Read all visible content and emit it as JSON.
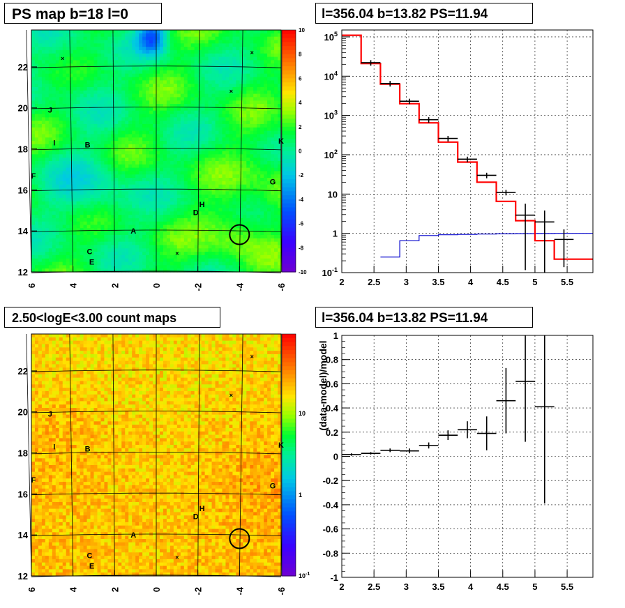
{
  "panels": {
    "top_left_title": "PS map b=18 l=0",
    "top_right_title": "l=356.04 b=13.82 PS=11.94",
    "bottom_left_title": "2.50<logE<3.00 count maps",
    "bottom_right_title": "l=356.04 b=13.82 PS=11.94"
  },
  "colors": {
    "data": "#000000",
    "model": "#ff0000",
    "background_model": "#0000cc"
  },
  "chart_data": [
    {
      "type": "heatmap",
      "title": "PS map b=18 l=0",
      "x_ticks": [
        "6",
        "4",
        "2",
        "0",
        "-2",
        "-4",
        "-6"
      ],
      "y_ticks": [
        "12",
        "14",
        "16",
        "18",
        "20",
        "22"
      ],
      "xlim": [
        6,
        -6
      ],
      "ylim": [
        12,
        23.8
      ],
      "colorbar_ticks": [
        "10",
        "8",
        "6",
        "4",
        "2",
        "0",
        "-2",
        "-4",
        "-6",
        "-8",
        "-10"
      ],
      "colorbar_range": [
        -10,
        10
      ],
      "source_labels": [
        {
          "label": "J",
          "l": 5.1,
          "b": 19.9
        },
        {
          "label": "I",
          "l": 4.9,
          "b": 18.3
        },
        {
          "label": "B",
          "l": 3.3,
          "b": 18.2
        },
        {
          "label": "F",
          "l": 5.9,
          "b": 16.7
        },
        {
          "label": "K",
          "l": -6.0,
          "b": 18.4
        },
        {
          "label": "G",
          "l": -5.6,
          "b": 16.4
        },
        {
          "label": "H",
          "l": -2.2,
          "b": 15.3
        },
        {
          "label": "D",
          "l": -1.9,
          "b": 14.9
        },
        {
          "label": "A",
          "l": 1.1,
          "b": 14.0
        },
        {
          "label": "C",
          "l": 3.2,
          "b": 13.0
        },
        {
          "label": "E",
          "l": 3.1,
          "b": 12.5
        }
      ],
      "markers": [
        {
          "l": -4.0,
          "b": 13.82,
          "type": "circle"
        }
      ]
    },
    {
      "type": "line",
      "title": "l=356.04 b=13.82 PS=11.94",
      "xlim": [
        2,
        5.9
      ],
      "ylim": [
        0.1,
        150000
      ],
      "yscale": "log",
      "x_ticks": [
        "2",
        "2.5",
        "3",
        "3.5",
        "4",
        "4.5",
        "5",
        "5.5"
      ],
      "y_ticks": [
        "10^-1",
        "1",
        "10",
        "10^2",
        "10^3",
        "10^4",
        "10^5"
      ],
      "grid": true,
      "data_points": [
        {
          "x": 2.45,
          "y": 22000
        },
        {
          "x": 2.75,
          "y": 6500
        },
        {
          "x": 3.05,
          "y": 2300
        },
        {
          "x": 3.35,
          "y": 780
        },
        {
          "x": 3.65,
          "y": 260
        },
        {
          "x": 3.95,
          "y": 77
        },
        {
          "x": 4.25,
          "y": 30
        },
        {
          "x": 4.55,
          "y": 11
        },
        {
          "x": 4.85,
          "y": 2.9
        },
        {
          "x": 5.15,
          "y": 1.95
        },
        {
          "x": 5.45,
          "y": 0.7
        }
      ],
      "model_step_edges": [
        2.0,
        2.3,
        2.6,
        2.9,
        3.2,
        3.5,
        3.8,
        4.1,
        4.4,
        4.7,
        5.0,
        5.3,
        5.6,
        5.9
      ],
      "model_values": [
        110000,
        21000,
        6300,
        2000,
        650,
        210,
        65,
        20,
        6.5,
        2.1,
        0.65,
        0.22,
        0.22
      ],
      "background_step_edges": [
        2.6,
        2.9,
        3.2,
        3.5,
        3.8,
        4.1,
        4.4,
        4.7,
        5.0,
        5.3,
        5.6,
        5.9
      ],
      "background_values": [
        0.25,
        0.65,
        0.88,
        0.92,
        0.94,
        0.96,
        0.97,
        0.98,
        0.99,
        1.0,
        1.0
      ]
    },
    {
      "type": "heatmap",
      "title": "2.50<logE<3.00 count maps",
      "x_ticks": [
        "6",
        "4",
        "2",
        "0",
        "-2",
        "-4",
        "-6"
      ],
      "y_ticks": [
        "12",
        "14",
        "16",
        "18",
        "20",
        "22"
      ],
      "xlim": [
        6,
        -6
      ],
      "ylim": [
        12,
        23.8
      ],
      "colorbar_ticks": [
        "10",
        "1",
        "10^-1"
      ],
      "colorbar_scale": "log"
    },
    {
      "type": "scatter",
      "title": "l=356.04 b=13.82 PS=11.94",
      "ylabel": "(data-model)/model",
      "xlim": [
        2,
        5.9
      ],
      "ylim": [
        -1,
        1
      ],
      "x_ticks": [
        "2",
        "2.5",
        "3",
        "3.5",
        "4",
        "4.5",
        "5",
        "5.5"
      ],
      "y_ticks": [
        "1",
        "0.8",
        "0.6",
        "0.4",
        "0.2",
        "0",
        "-0.2",
        "-0.4",
        "-0.6",
        "-0.8",
        "-1"
      ],
      "grid": true,
      "points": [
        {
          "x": 2.15,
          "y": 0.015,
          "xerr": 0.15,
          "yerr": 0.01
        },
        {
          "x": 2.45,
          "y": 0.025,
          "xerr": 0.15,
          "yerr": 0.01
        },
        {
          "x": 2.75,
          "y": 0.05,
          "xerr": 0.15,
          "yerr": 0.015
        },
        {
          "x": 3.05,
          "y": 0.045,
          "xerr": 0.15,
          "yerr": 0.02
        },
        {
          "x": 3.35,
          "y": 0.09,
          "xerr": 0.15,
          "yerr": 0.025
        },
        {
          "x": 3.65,
          "y": 0.175,
          "xerr": 0.15,
          "yerr": 0.04
        },
        {
          "x": 3.95,
          "y": 0.22,
          "xerr": 0.15,
          "yerr": 0.07
        },
        {
          "x": 4.25,
          "y": 0.19,
          "xerr": 0.15,
          "yerr": 0.14
        },
        {
          "x": 4.55,
          "y": 0.46,
          "xerr": 0.15,
          "yerr": 0.27
        },
        {
          "x": 4.85,
          "y": 0.62,
          "xerr": 0.15,
          "yerr": 0.5
        },
        {
          "x": 5.15,
          "y": 0.41,
          "xerr": 0.15,
          "yerr": 0.8
        }
      ]
    }
  ]
}
